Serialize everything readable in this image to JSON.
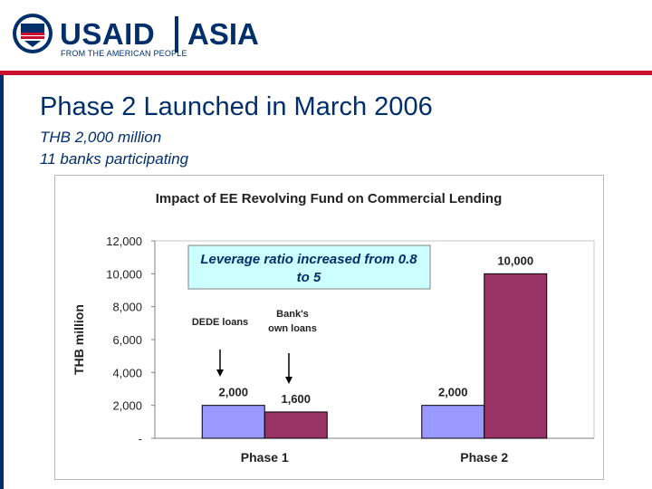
{
  "header": {
    "logo_text": "USAID",
    "logo_region": "ASIA",
    "logo_tagline": "FROM THE AMERICAN PEOPLE"
  },
  "slide": {
    "title": "Phase 2 Launched in March 2006",
    "subtitle_lines": [
      "THB 2,000 million",
      "11 banks participating"
    ]
  },
  "colors": {
    "navy": "#002f6c",
    "red": "#c8102e",
    "dede_bar": "#9999ff",
    "bank_bar": "#993366",
    "callout_fill": "#ccffff"
  },
  "chart_data": {
    "type": "bar",
    "title": "Impact of EE Revolving Fund on Commercial Lending",
    "ylabel": "THB million",
    "categories": [
      "Phase 1",
      "Phase 2"
    ],
    "series": [
      {
        "values": [
          2000,
          2000
        ],
        "labels": [
          "2,000",
          "2,000"
        ]
      },
      {
        "values": [
          1600,
          10000
        ],
        "labels": [
          "1,600",
          "10,000"
        ]
      }
    ],
    "ylim": [
      0,
      12000
    ],
    "yticks": [
      0,
      2000,
      4000,
      6000,
      8000,
      10000,
      12000
    ],
    "ytick_labels": [
      "-",
      "2,000",
      "4,000",
      "6,000",
      "8,000",
      "10,000",
      "12,000"
    ],
    "callout": "Leverage ratio increased from 0.8 to 5",
    "annotations": [
      "DEDE loans",
      "Bank's own loans"
    ],
    "grid": false,
    "legend": "none"
  }
}
